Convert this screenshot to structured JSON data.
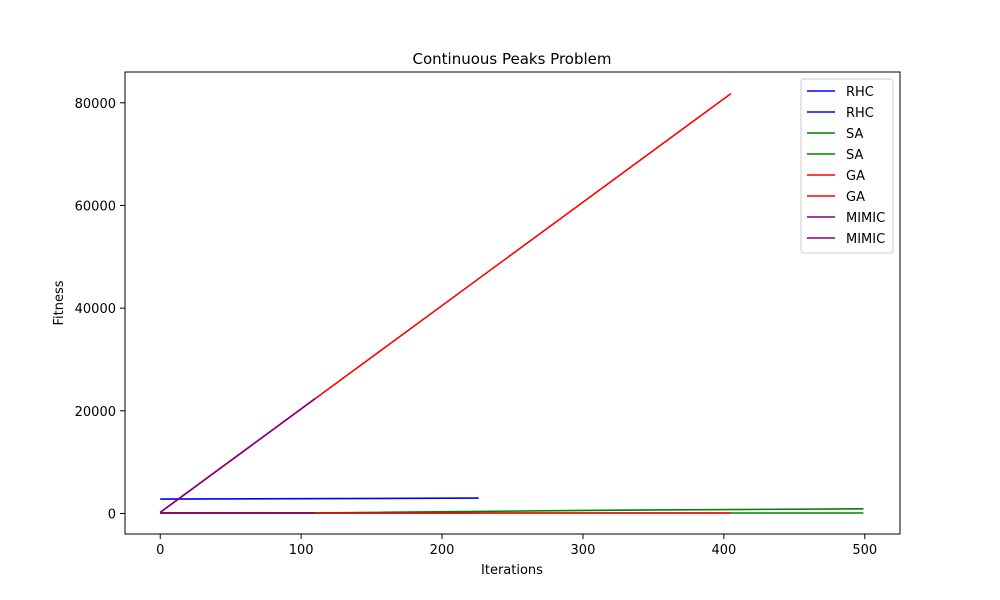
{
  "chart_data": {
    "type": "line",
    "title": "Continuous Peaks Problem",
    "xlabel": "Iterations",
    "ylabel": "Fitness",
    "xlim": [
      -25,
      525
    ],
    "ylim": [
      -4000,
      86000
    ],
    "xticks": [
      0,
      100,
      200,
      300,
      400,
      500
    ],
    "yticks": [
      0,
      20000,
      40000,
      60000,
      80000
    ],
    "grid": false,
    "legend_position": "top-right",
    "series": [
      {
        "name": "RHC",
        "color": "#0000ff",
        "points": [
          [
            0,
            2800
          ],
          [
            226,
            3000
          ]
        ]
      },
      {
        "name": "RHC",
        "color": "#0000ff",
        "points": [
          [
            0,
            100
          ],
          [
            226,
            100
          ]
        ]
      },
      {
        "name": "SA",
        "color": "#008000",
        "points": [
          [
            0,
            100
          ],
          [
            110,
            100
          ],
          [
            300,
            600
          ],
          [
            499,
            900
          ]
        ]
      },
      {
        "name": "SA",
        "color": "#008000",
        "points": [
          [
            0,
            100
          ],
          [
            499,
            100
          ]
        ]
      },
      {
        "name": "GA",
        "color": "#ff0000",
        "points": [
          [
            0,
            200
          ],
          [
            405,
            81800
          ]
        ]
      },
      {
        "name": "GA",
        "color": "#ff0000",
        "points": [
          [
            0,
            100
          ],
          [
            405,
            100
          ]
        ]
      },
      {
        "name": "MIMIC",
        "color": "#800080",
        "points": [
          [
            0,
            200
          ],
          [
            110,
            22400
          ]
        ]
      },
      {
        "name": "MIMIC",
        "color": "#800080",
        "points": [
          [
            0,
            100
          ],
          [
            110,
            100
          ]
        ]
      }
    ]
  }
}
